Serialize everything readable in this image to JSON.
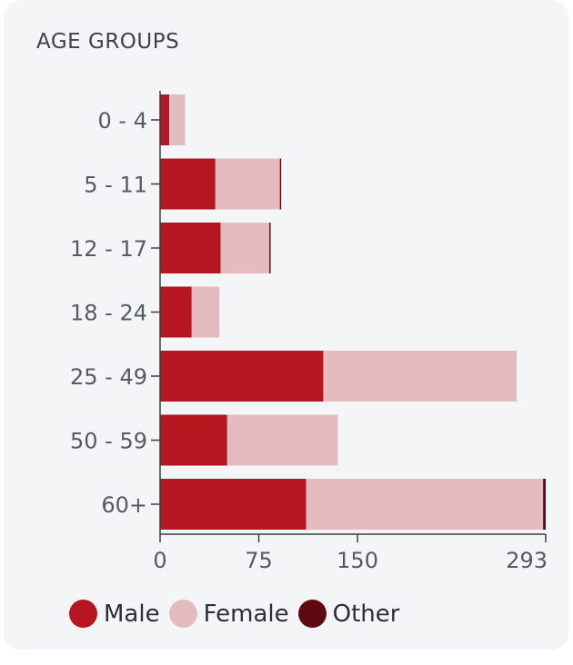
{
  "card": {
    "title": "AGE GROUPS"
  },
  "colors": {
    "male": "#b5161f",
    "female": "#e4bcc0",
    "other": "#5e0a10",
    "axis": "#3a3f42",
    "tick_text": "#555b5e"
  },
  "chart_data": {
    "type": "bar",
    "orientation": "horizontal",
    "stacked": true,
    "title": "AGE GROUPS",
    "categories": [
      "0 - 4",
      "5 - 11",
      "12 - 17",
      "18 - 24",
      "25 - 49",
      "50 - 59",
      "60+"
    ],
    "series": [
      {
        "name": "Male",
        "values": [
          7,
          42,
          46,
          24,
          124,
          51,
          111
        ],
        "color": "#b5161f"
      },
      {
        "name": "Female",
        "values": [
          12,
          49,
          37,
          21,
          147,
          84,
          180
        ],
        "color": "#e4bcc0"
      },
      {
        "name": "Other",
        "values": [
          0,
          1,
          1,
          0,
          0,
          0,
          2
        ],
        "color": "#5e0a10"
      }
    ],
    "x_ticks": [
      0,
      75,
      150,
      293
    ],
    "xlim": [
      0,
      293
    ],
    "grid": false,
    "legend_position": "bottom-left"
  },
  "legend": [
    {
      "label": "Male",
      "color": "#b5161f"
    },
    {
      "label": "Female",
      "color": "#e4bcc0"
    },
    {
      "label": "Other",
      "color": "#5e0a10"
    }
  ]
}
